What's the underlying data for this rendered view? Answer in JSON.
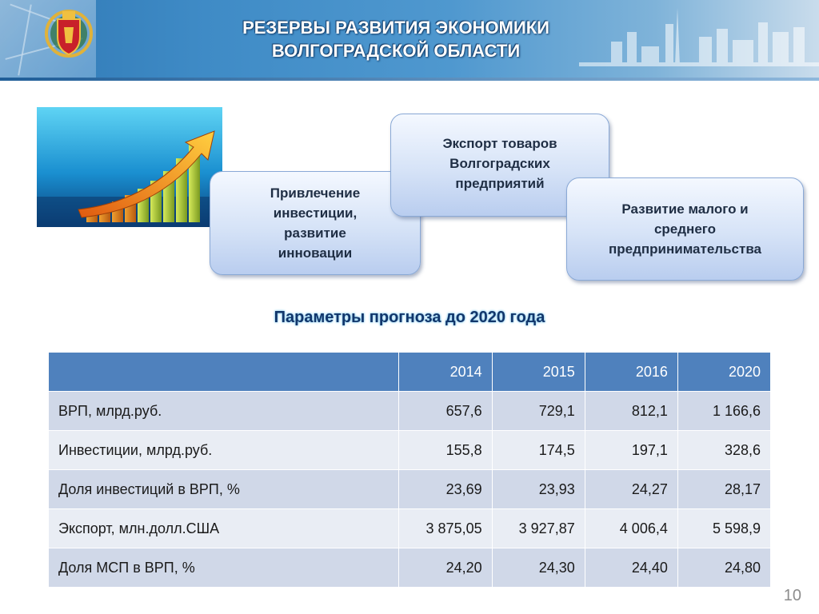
{
  "header": {
    "title_line1": "РЕЗЕРВЫ РАЗВИТИЯ ЭКОНОМИКИ",
    "title_line2": "ВОЛГОГРАДСКОЙ ОБЛАСТИ"
  },
  "bubbles": {
    "investment": "Привлечение\nинвестиции,\nразвитие\nинновации",
    "export": "Экспорт товаров\nВолгоградских\nпредприятий",
    "sme": "Развитие малого и\nсреднего\nпредпринимательства"
  },
  "subtitle": "Параметры прогноза до 2020 года",
  "table": {
    "columns": [
      "",
      "2014",
      "2015",
      "2016",
      "2020"
    ],
    "rows": [
      [
        "ВРП, млрд.руб.",
        "657,6",
        "729,1",
        "812,1",
        "1 166,6"
      ],
      [
        "Инвестиции, млрд.руб.",
        "155,8",
        "174,5",
        "197,1",
        "328,6"
      ],
      [
        "Доля инвестиций в ВРП, %",
        "23,69",
        "23,93",
        "24,27",
        "28,17"
      ],
      [
        "Экспорт, млн.долл.США",
        "3 875,05",
        "3 927,87",
        "4 006,4",
        "5 598,9"
      ],
      [
        "Доля МСП в ВРП, %",
        "24,20",
        "24,30",
        "24,40",
        "24,80"
      ]
    ]
  },
  "page_number": "10",
  "colors": {
    "header_blue": "#3f8bc6",
    "table_header": "#4f81bd",
    "row_odd": "#d0d8e8",
    "row_even": "#e9edf4",
    "subtitle": "#12366b"
  },
  "icons": [
    "volgograd-emblem-icon",
    "growth-chart-arrow-icon",
    "city-skyline-icon"
  ]
}
